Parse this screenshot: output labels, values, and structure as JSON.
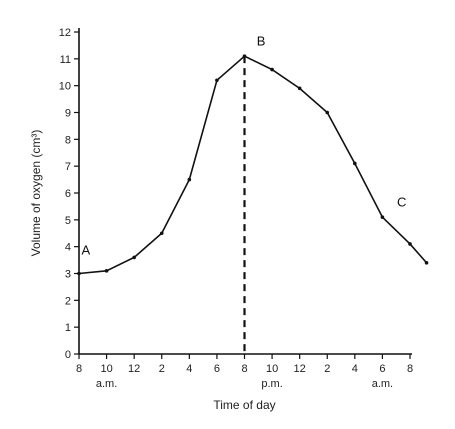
{
  "chart_data": {
    "type": "line",
    "title": "",
    "xlabel": "Time of day",
    "ylabel": "Volume of oxygen (cm³)",
    "ylim": [
      0,
      12
    ],
    "yticks": [
      "0",
      "1",
      "2",
      "3",
      "4",
      "5",
      "6",
      "7",
      "8",
      "9",
      "10",
      "11",
      "12"
    ],
    "xticks": [
      "8",
      "10",
      "12",
      "2",
      "4",
      "6",
      "8",
      "10",
      "12",
      "2",
      "4",
      "6",
      "8"
    ],
    "period_labels": [
      {
        "text": "a.m.",
        "at_tick": 1
      },
      {
        "text": "p.m.",
        "at_tick": 7
      },
      {
        "text": "a.m.",
        "at_tick": 11
      }
    ],
    "series": [
      {
        "x_ticks": [
          0,
          1,
          2,
          3,
          4,
          5,
          6,
          7,
          8,
          9,
          10,
          11,
          12
        ],
        "values": [
          3.0,
          3.1,
          3.6,
          4.5,
          6.5,
          10.2,
          11.1,
          10.6,
          9.9,
          9.0,
          7.1,
          5.1,
          4.1,
          3.4
        ],
        "x": [
          0,
          1,
          2,
          3,
          4,
          5,
          6,
          7,
          8,
          9,
          10,
          11,
          12,
          12.6
        ]
      }
    ],
    "annotations": [
      {
        "text": "A",
        "x": 0.25,
        "y": 3.7
      },
      {
        "text": "B",
        "x": 6.6,
        "y": 11.5
      },
      {
        "text": "C",
        "x": 11.7,
        "y": 5.5
      }
    ],
    "dashed_line_at_x": 6,
    "grid": false
  }
}
